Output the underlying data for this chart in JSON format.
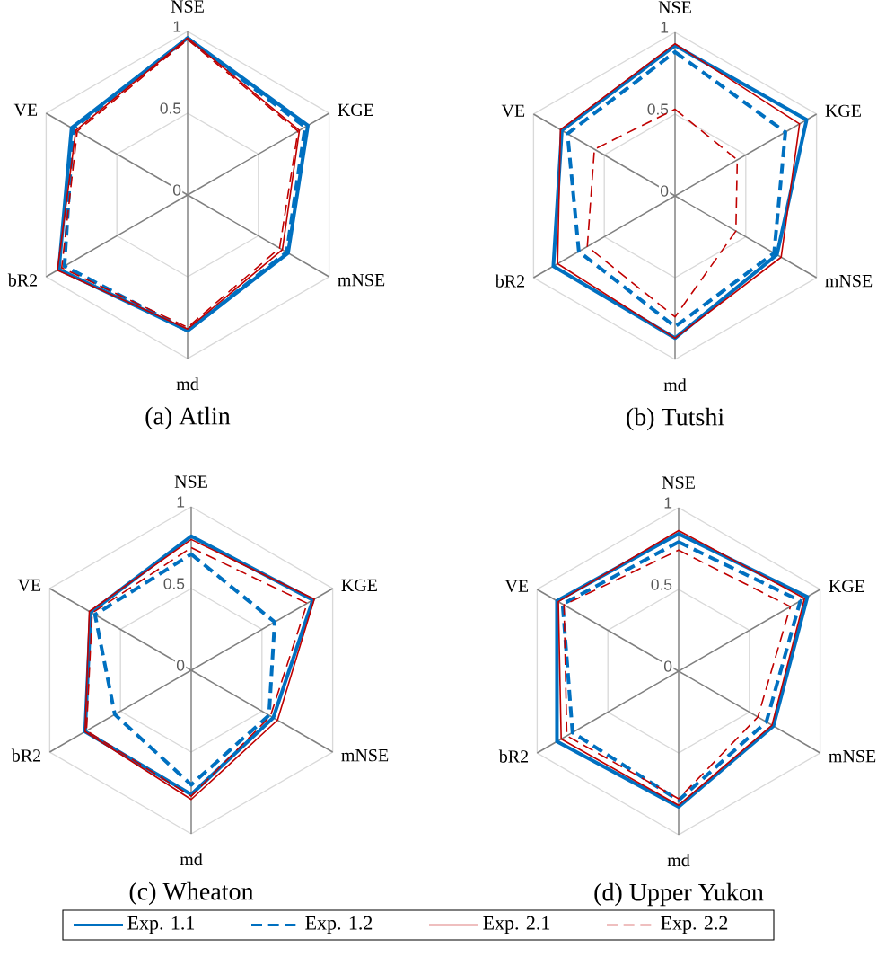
{
  "chart_data": [
    {
      "type": "radar",
      "title": "(a) Atlin",
      "categories": [
        "NSE",
        "KGE",
        "mNSE",
        "md",
        "bR2",
        "VE"
      ],
      "ylim": [
        0,
        1
      ],
      "yticks": [
        0,
        0.5,
        1
      ],
      "grid": true,
      "series": [
        {
          "color": "#0070c0",
          "line_style": "solid",
          "values": [
            0.96,
            0.85,
            0.71,
            0.83,
            0.91,
            0.82
          ]
        },
        {
          "color": "#0070c0",
          "line_style": "dashed",
          "values": [
            0.96,
            0.83,
            0.7,
            0.83,
            0.87,
            0.81
          ]
        },
        {
          "color": "#c00000",
          "line_style": "solid",
          "values": [
            0.96,
            0.79,
            0.67,
            0.82,
            0.92,
            0.79
          ]
        },
        {
          "color": "#c00000",
          "line_style": "dashed",
          "values": [
            0.95,
            0.78,
            0.65,
            0.81,
            0.89,
            0.78
          ]
        }
      ]
    },
    {
      "type": "radar",
      "title": "(b) Tutshi",
      "categories": [
        "NSE",
        "KGE",
        "mNSE",
        "md",
        "bR2",
        "VE"
      ],
      "ylim": [
        0,
        1
      ],
      "yticks": [
        0,
        0.5,
        1
      ],
      "grid": true,
      "series": [
        {
          "color": "#0070c0",
          "line_style": "solid",
          "values": [
            0.92,
            0.93,
            0.72,
            0.87,
            0.86,
            0.8
          ]
        },
        {
          "color": "#0070c0",
          "line_style": "dashed",
          "values": [
            0.88,
            0.78,
            0.7,
            0.8,
            0.68,
            0.76
          ]
        },
        {
          "color": "#c00000",
          "line_style": "solid",
          "values": [
            0.93,
            0.88,
            0.75,
            0.87,
            0.83,
            0.81
          ]
        },
        {
          "color": "#c00000",
          "line_style": "dashed",
          "values": [
            0.53,
            0.44,
            0.43,
            0.74,
            0.62,
            0.57
          ]
        }
      ]
    },
    {
      "type": "radar",
      "title": "(c) Wheaton",
      "categories": [
        "NSE",
        "KGE",
        "mNSE",
        "md",
        "bR2",
        "VE"
      ],
      "ylim": [
        0,
        1
      ],
      "yticks": [
        0,
        0.5,
        1
      ],
      "grid": true,
      "series": [
        {
          "color": "#0070c0",
          "line_style": "solid",
          "values": [
            0.82,
            0.86,
            0.58,
            0.76,
            0.75,
            0.71
          ]
        },
        {
          "color": "#0070c0",
          "line_style": "dashed",
          "values": [
            0.71,
            0.59,
            0.55,
            0.7,
            0.54,
            0.68
          ]
        },
        {
          "color": "#c00000",
          "line_style": "solid",
          "values": [
            0.8,
            0.87,
            0.61,
            0.79,
            0.75,
            0.72
          ]
        },
        {
          "color": "#c00000",
          "line_style": "dashed",
          "values": [
            0.75,
            0.82,
            0.56,
            0.77,
            0.74,
            0.7
          ]
        }
      ]
    },
    {
      "type": "radar",
      "title": "(d) Upper Yukon",
      "categories": [
        "NSE",
        "KGE",
        "mNSE",
        "md",
        "bR2",
        "VE"
      ],
      "ylim": [
        0,
        1
      ],
      "yticks": [
        0,
        0.5,
        1
      ],
      "grid": true,
      "legend": "bottom",
      "series": [
        {
          "name": "Exp. 1.1",
          "color": "#0070c0",
          "line_style": "solid",
          "values": [
            0.84,
            0.91,
            0.67,
            0.83,
            0.86,
            0.86
          ]
        },
        {
          "name": "Exp. 1.2",
          "color": "#0070c0",
          "line_style": "dashed",
          "values": [
            0.79,
            0.86,
            0.62,
            0.79,
            0.75,
            0.82
          ]
        },
        {
          "name": "Exp. 2.1",
          "color": "#c00000",
          "line_style": "solid",
          "values": [
            0.86,
            0.89,
            0.66,
            0.82,
            0.83,
            0.85
          ]
        },
        {
          "name": "Exp. 2.2",
          "color": "#c00000",
          "line_style": "dashed",
          "values": [
            0.74,
            0.79,
            0.56,
            0.78,
            0.79,
            0.81
          ]
        }
      ]
    }
  ]
}
